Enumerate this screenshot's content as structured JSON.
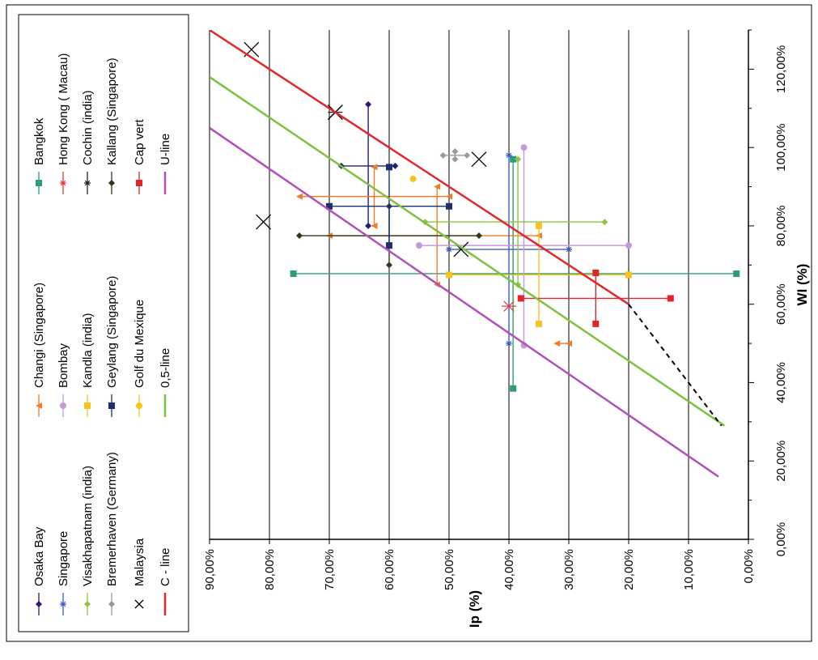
{
  "chart_data": {
    "type": "scatter",
    "orientation": "rotated 90 degrees counter-clockwise",
    "xlabel": "WI (%)",
    "ylabel": "Ip (%)",
    "xlim": [
      0,
      130
    ],
    "ylim": [
      0,
      90
    ],
    "x_ticks": [
      0,
      20,
      40,
      60,
      80,
      100,
      120
    ],
    "x_tick_labels": [
      "0,00%",
      "20,00%",
      "40,00%",
      "60,00%",
      "80,00%",
      "100,00%",
      "120,00%"
    ],
    "y_ticks": [
      0,
      10,
      20,
      30,
      40,
      50,
      60,
      70,
      80,
      90
    ],
    "y_tick_labels": [
      "0,00%",
      "10,00%",
      "20,00%",
      "30,00%",
      "40,00%",
      "50,00%",
      "60,00%",
      "70,00%",
      "80,00%",
      "90,00%"
    ],
    "grid": "vertical gridlines at every Ip tick",
    "legend_position": "left",
    "series": [
      {
        "name": "Osaka Bay",
        "color": "#1f1f7a",
        "marker": "diamond",
        "h": [
          {
            "y": 95.3,
            "x1": 68,
            "x2": 59
          }
        ],
        "v": [
          {
            "x": 63.5,
            "y1": 80,
            "y2": 111
          }
        ]
      },
      {
        "name": "Bangkok",
        "color": "#2e9c7a",
        "marker": "square",
        "h": [
          {
            "y": 67.8,
            "x1": 76,
            "x2": 2
          }
        ],
        "v": [
          {
            "x": 39.3,
            "y1": 38.5,
            "y2": 97
          }
        ]
      },
      {
        "name": "Changi (Singapore)",
        "color": "#f07c2a",
        "marker": "triangle",
        "h": [
          {
            "y": 87.5,
            "x1": 75,
            "x2": 50
          },
          {
            "y": 77.5,
            "x1": 70,
            "x2": 35
          },
          {
            "y": 50,
            "x1": 32,
            "x2": 30
          }
        ],
        "v": [
          {
            "x": 52,
            "y1": 65,
            "y2": 90
          },
          {
            "x": 62.5,
            "y1": 80,
            "y2": 95
          }
        ]
      },
      {
        "name": "Singapore",
        "color": "#3a5ec8",
        "marker": "asterisk",
        "h": [
          {
            "y": 74,
            "x1": 50,
            "x2": 30
          }
        ],
        "v": [
          {
            "x": 40,
            "y1": 50,
            "y2": 98
          }
        ]
      },
      {
        "name": "Hong Kong ( Macau)",
        "color": "#e23b3b",
        "marker": "asterisk",
        "points": [
          {
            "x": 59.5,
            "y": 40
          }
        ]
      },
      {
        "name": "Bombay",
        "color": "#c49ad8",
        "marker": "circle",
        "h": [
          {
            "y": 75,
            "x1": 55,
            "x2": 20
          }
        ],
        "v": [
          {
            "x": 37.5,
            "y1": 49.5,
            "y2": 100
          }
        ]
      },
      {
        "name": "Visakhapatnam (india)",
        "color": "#8dc63f",
        "marker": "diamond",
        "h": [
          {
            "y": 81,
            "x1": 54,
            "x2": 24
          }
        ],
        "v": [
          {
            "x": 38.5,
            "y1": 65,
            "y2": 97
          }
        ]
      },
      {
        "name": "Cochin  (india)",
        "color": "#222222",
        "marker": "asterisk",
        "points": [
          {
            "x": 109,
            "y": 69
          }
        ]
      },
      {
        "name": "Kandla  (india)",
        "color": "#f7c31e",
        "marker": "square",
        "h": [
          {
            "y": 67.5,
            "x1": 50,
            "x2": 20
          }
        ],
        "v": [
          {
            "x": 35,
            "y1": 55,
            "y2": 80
          }
        ]
      },
      {
        "name": "Bremerhaven (Germany)",
        "color": "#9a9a9a",
        "marker": "diamond",
        "h": [
          {
            "y": 98,
            "x1": 51,
            "x2": 47
          }
        ],
        "v": [
          {
            "x": 49,
            "y1": 97,
            "y2": 99
          }
        ]
      },
      {
        "name": "Kallang (Singapore)",
        "color": "#2f3a1a",
        "marker": "diamond",
        "h": [
          {
            "y": 77.5,
            "x1": 75,
            "x2": 45
          }
        ],
        "v": [
          {
            "x": 60,
            "y1": 70,
            "y2": 85
          }
        ]
      },
      {
        "name": "Geylang (Singapore)",
        "color": "#1c2f6e",
        "marker": "square",
        "h": [
          {
            "y": 85,
            "x1": 70,
            "x2": 50
          }
        ],
        "v": [
          {
            "x": 60,
            "y1": 75,
            "y2": 95
          }
        ]
      },
      {
        "name": "Cap vert",
        "color": "#e0262a",
        "marker": "square",
        "h": [
          {
            "y": 61.5,
            "x1": 38,
            "x2": 13
          }
        ],
        "v": [
          {
            "x": 25.5,
            "y1": 55,
            "y2": 68
          }
        ]
      },
      {
        "name": "Malaysia",
        "color": "#000000",
        "marker": "x",
        "points": [
          {
            "x": 125,
            "y": 83
          },
          {
            "x": 109,
            "y": 69
          },
          {
            "x": 97,
            "y": 45
          },
          {
            "x": 81,
            "y": 81
          },
          {
            "x": 74,
            "y": 48
          }
        ]
      },
      {
        "name": "Golf du Mexique",
        "color": "#f7c31e",
        "marker": "circle",
        "points": [
          {
            "x": 92,
            "y": 56
          }
        ]
      },
      {
        "name": "C - line",
        "color": "#e3262a",
        "marker": "line",
        "line": [
          {
            "x": 130,
            "y": 90
          },
          {
            "x": 60,
            "y": 20
          }
        ]
      },
      {
        "name": "0,5-line",
        "color": "#7cc242",
        "marker": "line",
        "line": [
          {
            "x": 118,
            "y": 90
          },
          {
            "x": 29,
            "y": 4
          }
        ]
      },
      {
        "name": "U-line",
        "color": "#b150b8",
        "marker": "line",
        "line": [
          {
            "x": 105,
            "y": 90
          },
          {
            "x": 16,
            "y": 5
          }
        ]
      },
      {
        "color": "#000000",
        "marker": "dashed-line",
        "line": [
          {
            "x": 60,
            "y": 20
          },
          {
            "x": 29,
            "y": 4.5
          }
        ]
      }
    ]
  }
}
